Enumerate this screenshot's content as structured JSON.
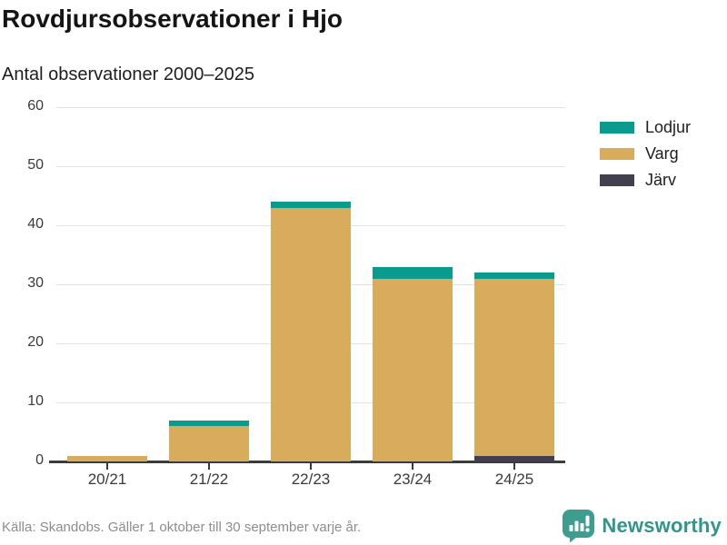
{
  "title": "Rovdjursobservationer i Hjo",
  "subtitle": "Antal observationer 2000–2025",
  "legend": [
    {
      "label": "Lodjur",
      "color": "#0a9b8e"
    },
    {
      "label": "Varg",
      "color": "#d9ab5c"
    },
    {
      "label": "Järv",
      "color": "#42404f"
    }
  ],
  "chart_data": {
    "type": "bar",
    "stacked": true,
    "title": "Rovdjursobservationer i Hjo",
    "subtitle": "Antal observationer 2000–2025",
    "categories": [
      "20/21",
      "21/22",
      "22/23",
      "23/24",
      "24/25"
    ],
    "series": [
      {
        "name": "Lodjur",
        "color": "#0a9b8e",
        "values": [
          0,
          1,
          1,
          2,
          1
        ]
      },
      {
        "name": "Varg",
        "color": "#d9ab5c",
        "values": [
          1,
          6,
          43,
          31,
          30
        ]
      },
      {
        "name": "Järv",
        "color": "#42404f",
        "values": [
          0,
          0,
          0,
          0,
          1
        ]
      }
    ],
    "totals": [
      1,
      7,
      44,
      33,
      32
    ],
    "xlabel": "",
    "ylabel": "",
    "ylim": [
      0,
      60
    ],
    "yticks": [
      0,
      10,
      20,
      30,
      40,
      50,
      60
    ],
    "grid": true,
    "legend_position": "right",
    "grid_color": "#e3e3e3",
    "axis_color": "#3b3b3b"
  },
  "footer": {
    "source": "Källa: Skandobs. Gäller 1 oktober till 30 september varje år."
  },
  "branding": {
    "name": "Newsworthy",
    "icon": "newsworthy-speech-bubble-chart-icon",
    "color": "#2f9789"
  }
}
